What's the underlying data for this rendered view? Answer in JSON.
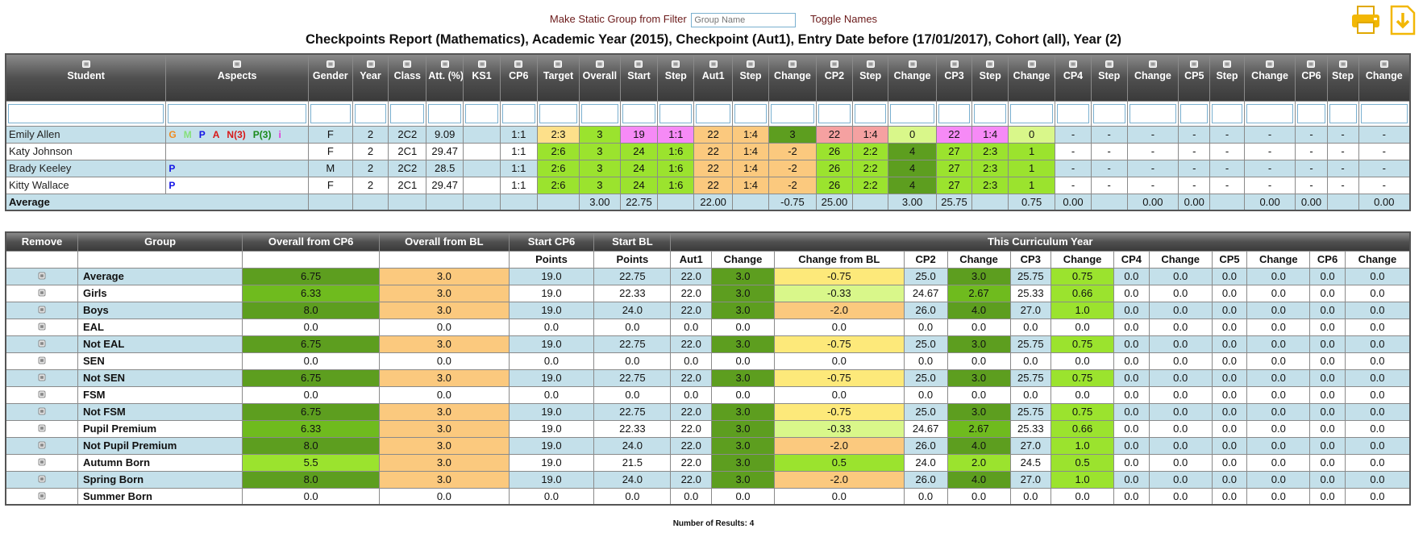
{
  "toolbar": {
    "filter_label": "Make Static Group from Filter",
    "group_name_placeholder": "Group Name",
    "toggle_names": "Toggle Names",
    "print_icon": "printer-icon",
    "download_icon": "download-icon"
  },
  "report_title": "Checkpoints Report (Mathematics), Academic Year (2015), Checkpoint (Aut1), Entry Date before (17/01/2017), Cohort (all), Year (2)",
  "students_table": {
    "headers": [
      "Student",
      "Aspects",
      "Gender",
      "Year",
      "Class",
      "Att. (%)",
      "KS1",
      "CP6",
      "Target",
      "Overall",
      "Start",
      "Step",
      "Aut1",
      "Step",
      "Change",
      "CP2",
      "Step",
      "Change",
      "CP3",
      "Step",
      "Change",
      "CP4",
      "Step",
      "Change",
      "CP5",
      "Step",
      "Change",
      "CP6",
      "Step",
      "Change"
    ],
    "rows": [
      {
        "name": "Emily Allen",
        "aspects": [
          {
            "t": "G",
            "c": "#f08a1e"
          },
          {
            "t": "M",
            "c": "#86e07a"
          },
          {
            "t": "P",
            "c": "#1414e6"
          },
          {
            "t": "A",
            "c": "#d81818"
          },
          {
            "t": "N(3)",
            "c": "#d81818"
          },
          {
            "t": "P(3)",
            "c": "#1a8a1a"
          },
          {
            "t": "i",
            "c": "#e23ad8"
          }
        ],
        "cells": [
          "F",
          "2",
          "2C2",
          "9.09",
          "",
          "1:1",
          "2:3",
          "3",
          "19",
          "1:1",
          "22",
          "1:4",
          "3",
          "22",
          "1:4",
          "0",
          "22",
          "1:4",
          "0",
          "-",
          "-",
          "-",
          "-",
          "-",
          "-",
          "-",
          "-",
          "-"
        ],
        "classes": [
          "",
          "",
          "",
          "",
          "",
          "",
          "yel",
          "g1",
          "mag",
          "mag",
          "org",
          "org",
          "g3",
          "pink",
          "pink",
          "lg",
          "mag",
          "mag",
          "lg",
          "",
          "",
          "",
          "",
          "",
          "",
          "",
          "",
          ""
        ]
      },
      {
        "name": "Katy Johnson",
        "aspects": [],
        "cells": [
          "F",
          "2",
          "2C1",
          "29.47",
          "",
          "1:1",
          "2:6",
          "3",
          "24",
          "1:6",
          "22",
          "1:4",
          "-2",
          "26",
          "2:2",
          "4",
          "27",
          "2:3",
          "1",
          "-",
          "-",
          "-",
          "-",
          "-",
          "-",
          "-",
          "-",
          "-"
        ],
        "classes": [
          "",
          "",
          "",
          "",
          "",
          "",
          "g1",
          "g1",
          "g1",
          "g1",
          "org",
          "org",
          "org",
          "g1",
          "g1",
          "g3",
          "g1",
          "g1",
          "g1",
          "",
          "",
          "",
          "",
          "",
          "",
          "",
          "",
          ""
        ]
      },
      {
        "name": "Brady Keeley",
        "aspects": [
          {
            "t": "P",
            "c": "#1414e6"
          }
        ],
        "cells": [
          "M",
          "2",
          "2C2",
          "28.5",
          "",
          "1:1",
          "2:6",
          "3",
          "24",
          "1:6",
          "22",
          "1:4",
          "-2",
          "26",
          "2:2",
          "4",
          "27",
          "2:3",
          "1",
          "-",
          "-",
          "-",
          "-",
          "-",
          "-",
          "-",
          "-",
          "-"
        ],
        "classes": [
          "",
          "",
          "",
          "",
          "",
          "",
          "g1",
          "g1",
          "g1",
          "g1",
          "org",
          "org",
          "org",
          "g1",
          "g1",
          "g3",
          "g1",
          "g1",
          "g1",
          "",
          "",
          "",
          "",
          "",
          "",
          "",
          "",
          ""
        ]
      },
      {
        "name": "Kitty Wallace",
        "aspects": [
          {
            "t": "P",
            "c": "#1414e6"
          }
        ],
        "cells": [
          "F",
          "2",
          "2C1",
          "29.47",
          "",
          "1:1",
          "2:6",
          "3",
          "24",
          "1:6",
          "22",
          "1:4",
          "-2",
          "26",
          "2:2",
          "4",
          "27",
          "2:3",
          "1",
          "-",
          "-",
          "-",
          "-",
          "-",
          "-",
          "-",
          "-",
          "-"
        ],
        "classes": [
          "",
          "",
          "",
          "",
          "",
          "",
          "g1",
          "g1",
          "g1",
          "g1",
          "org",
          "org",
          "org",
          "g1",
          "g1",
          "g3",
          "g1",
          "g1",
          "g1",
          "",
          "",
          "",
          "",
          "",
          "",
          "",
          "",
          ""
        ]
      }
    ],
    "average": {
      "label": "Average",
      "cells": [
        "",
        "",
        "",
        "",
        "",
        "",
        "",
        "3.00",
        "22.75",
        "",
        "22.00",
        "",
        "-0.75",
        "25.00",
        "",
        "3.00",
        "25.75",
        "",
        "0.75",
        "0.00",
        "",
        "0.00",
        "0.00",
        "",
        "0.00",
        "0.00",
        "",
        "0.00"
      ]
    }
  },
  "groups_table": {
    "top_headers": [
      "Remove",
      "Group",
      "Overall from CP6",
      "Overall from BL",
      "Start CP6",
      "Start BL",
      "This Curriculum Year"
    ],
    "sub_headers": [
      "",
      "",
      "",
      "",
      "Points",
      "Points",
      "Aut1",
      "Change",
      "Change from BL",
      "CP2",
      "Change",
      "CP3",
      "Change",
      "CP4",
      "Change",
      "CP5",
      "Change",
      "CP6",
      "Change"
    ],
    "rows": [
      {
        "group": "Average",
        "v": [
          "6.75",
          "3.0",
          "19.0",
          "22.75",
          "22.0",
          "3.0",
          "-0.75",
          "25.0",
          "3.0",
          "25.75",
          "0.75",
          "0.0",
          "0.0",
          "0.0",
          "0.0",
          "0.0",
          "0.0"
        ],
        "c": [
          "g3",
          "org",
          "",
          "",
          "",
          "g3",
          "yell",
          "",
          "g3",
          "",
          "g1",
          "",
          "",
          "",
          "",
          "",
          ""
        ]
      },
      {
        "group": "Girls",
        "v": [
          "6.33",
          "3.0",
          "19.0",
          "22.33",
          "22.0",
          "3.0",
          "-0.33",
          "24.67",
          "2.67",
          "25.33",
          "0.66",
          "0.0",
          "0.0",
          "0.0",
          "0.0",
          "0.0",
          "0.0"
        ],
        "c": [
          "g2",
          "org",
          "",
          "",
          "",
          "g3",
          "lg",
          "",
          "g2",
          "",
          "g1",
          "",
          "",
          "",
          "",
          "",
          ""
        ]
      },
      {
        "group": "Boys",
        "v": [
          "8.0",
          "3.0",
          "19.0",
          "24.0",
          "22.0",
          "3.0",
          "-2.0",
          "26.0",
          "4.0",
          "27.0",
          "1.0",
          "0.0",
          "0.0",
          "0.0",
          "0.0",
          "0.0",
          "0.0"
        ],
        "c": [
          "g3",
          "org",
          "",
          "",
          "",
          "g3",
          "org",
          "",
          "g3",
          "",
          "g1",
          "",
          "",
          "",
          "",
          "",
          ""
        ]
      },
      {
        "group": "EAL",
        "v": [
          "0.0",
          "0.0",
          "0.0",
          "0.0",
          "0.0",
          "0.0",
          "0.0",
          "0.0",
          "0.0",
          "0.0",
          "0.0",
          "0.0",
          "0.0",
          "0.0",
          "0.0",
          "0.0",
          "0.0"
        ],
        "c": [
          "",
          "",
          "",
          "",
          "",
          "",
          "",
          "",
          "",
          "",
          "",
          "",
          "",
          "",
          "",
          "",
          ""
        ]
      },
      {
        "group": "Not EAL",
        "v": [
          "6.75",
          "3.0",
          "19.0",
          "22.75",
          "22.0",
          "3.0",
          "-0.75",
          "25.0",
          "3.0",
          "25.75",
          "0.75",
          "0.0",
          "0.0",
          "0.0",
          "0.0",
          "0.0",
          "0.0"
        ],
        "c": [
          "g3",
          "org",
          "",
          "",
          "",
          "g3",
          "yell",
          "",
          "g3",
          "",
          "g1",
          "",
          "",
          "",
          "",
          "",
          ""
        ]
      },
      {
        "group": "SEN",
        "v": [
          "0.0",
          "0.0",
          "0.0",
          "0.0",
          "0.0",
          "0.0",
          "0.0",
          "0.0",
          "0.0",
          "0.0",
          "0.0",
          "0.0",
          "0.0",
          "0.0",
          "0.0",
          "0.0",
          "0.0"
        ],
        "c": [
          "",
          "",
          "",
          "",
          "",
          "",
          "",
          "",
          "",
          "",
          "",
          "",
          "",
          "",
          "",
          "",
          ""
        ]
      },
      {
        "group": "Not SEN",
        "v": [
          "6.75",
          "3.0",
          "19.0",
          "22.75",
          "22.0",
          "3.0",
          "-0.75",
          "25.0",
          "3.0",
          "25.75",
          "0.75",
          "0.0",
          "0.0",
          "0.0",
          "0.0",
          "0.0",
          "0.0"
        ],
        "c": [
          "g3",
          "org",
          "",
          "",
          "",
          "g3",
          "yell",
          "",
          "g3",
          "",
          "g1",
          "",
          "",
          "",
          "",
          "",
          ""
        ]
      },
      {
        "group": "FSM",
        "v": [
          "0.0",
          "0.0",
          "0.0",
          "0.0",
          "0.0",
          "0.0",
          "0.0",
          "0.0",
          "0.0",
          "0.0",
          "0.0",
          "0.0",
          "0.0",
          "0.0",
          "0.0",
          "0.0",
          "0.0"
        ],
        "c": [
          "",
          "",
          "",
          "",
          "",
          "",
          "",
          "",
          "",
          "",
          "",
          "",
          "",
          "",
          "",
          "",
          ""
        ]
      },
      {
        "group": "Not FSM",
        "v": [
          "6.75",
          "3.0",
          "19.0",
          "22.75",
          "22.0",
          "3.0",
          "-0.75",
          "25.0",
          "3.0",
          "25.75",
          "0.75",
          "0.0",
          "0.0",
          "0.0",
          "0.0",
          "0.0",
          "0.0"
        ],
        "c": [
          "g3",
          "org",
          "",
          "",
          "",
          "g3",
          "yell",
          "",
          "g3",
          "",
          "g1",
          "",
          "",
          "",
          "",
          "",
          ""
        ]
      },
      {
        "group": "Pupil Premium",
        "v": [
          "6.33",
          "3.0",
          "19.0",
          "22.33",
          "22.0",
          "3.0",
          "-0.33",
          "24.67",
          "2.67",
          "25.33",
          "0.66",
          "0.0",
          "0.0",
          "0.0",
          "0.0",
          "0.0",
          "0.0"
        ],
        "c": [
          "g2",
          "org",
          "",
          "",
          "",
          "g3",
          "lg",
          "",
          "g2",
          "",
          "g1",
          "",
          "",
          "",
          "",
          "",
          ""
        ]
      },
      {
        "group": "Not Pupil Premium",
        "v": [
          "8.0",
          "3.0",
          "19.0",
          "24.0",
          "22.0",
          "3.0",
          "-2.0",
          "26.0",
          "4.0",
          "27.0",
          "1.0",
          "0.0",
          "0.0",
          "0.0",
          "0.0",
          "0.0",
          "0.0"
        ],
        "c": [
          "g3",
          "org",
          "",
          "",
          "",
          "g3",
          "org",
          "",
          "g3",
          "",
          "g1",
          "",
          "",
          "",
          "",
          "",
          ""
        ]
      },
      {
        "group": "Autumn Born",
        "v": [
          "5.5",
          "3.0",
          "19.0",
          "21.5",
          "22.0",
          "3.0",
          "0.5",
          "24.0",
          "2.0",
          "24.5",
          "0.5",
          "0.0",
          "0.0",
          "0.0",
          "0.0",
          "0.0",
          "0.0"
        ],
        "c": [
          "g1",
          "org",
          "",
          "",
          "",
          "g3",
          "g1",
          "",
          "g1",
          "",
          "g1",
          "",
          "",
          "",
          "",
          "",
          ""
        ]
      },
      {
        "group": "Spring Born",
        "v": [
          "8.0",
          "3.0",
          "19.0",
          "24.0",
          "22.0",
          "3.0",
          "-2.0",
          "26.0",
          "4.0",
          "27.0",
          "1.0",
          "0.0",
          "0.0",
          "0.0",
          "0.0",
          "0.0",
          "0.0"
        ],
        "c": [
          "g3",
          "org",
          "",
          "",
          "",
          "g3",
          "org",
          "",
          "g3",
          "",
          "g1",
          "",
          "",
          "",
          "",
          "",
          ""
        ]
      },
      {
        "group": "Summer Born",
        "v": [
          "0.0",
          "0.0",
          "0.0",
          "0.0",
          "0.0",
          "0.0",
          "0.0",
          "0.0",
          "0.0",
          "0.0",
          "0.0",
          "0.0",
          "0.0",
          "0.0",
          "0.0",
          "0.0",
          "0.0"
        ],
        "c": [
          "",
          "",
          "",
          "",
          "",
          "",
          "",
          "",
          "",
          "",
          "",
          "",
          "",
          "",
          "",
          "",
          ""
        ]
      }
    ]
  },
  "footer": "Number of Results: 4"
}
